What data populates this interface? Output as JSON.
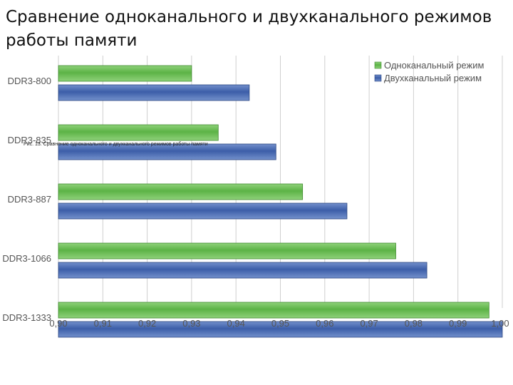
{
  "slide": {
    "title": "Сравнение одноканального и двухканального режимов работы памяти"
  },
  "caption": "Рис. 13. Сравнение одноканального и двухканального режимов работы памяти",
  "colors": {
    "single": "#5cb346",
    "dual": "#3c5ea8",
    "grid": "#cfcfcf"
  },
  "chart_data": {
    "type": "bar",
    "orientation": "horizontal",
    "categories": [
      "DDR3-800",
      "DDR3-835",
      "DDR3-887",
      "DDR3-1066",
      "DDR3-1333"
    ],
    "series": [
      {
        "name": "Одноканальный режим",
        "values": [
          0.93,
          0.936,
          0.955,
          0.976,
          0.997
        ]
      },
      {
        "name": "Двухканальный режим",
        "values": [
          0.943,
          0.949,
          0.965,
          0.983,
          1.0
        ]
      }
    ],
    "xlim": [
      0.9,
      1.0
    ],
    "xticks": [
      "0,90",
      "0,91",
      "0,92",
      "0,93",
      "0,94",
      "0,95",
      "0,96",
      "0,97",
      "0,98",
      "0,99",
      "1,00"
    ],
    "grid": true,
    "legend": "top-right"
  }
}
